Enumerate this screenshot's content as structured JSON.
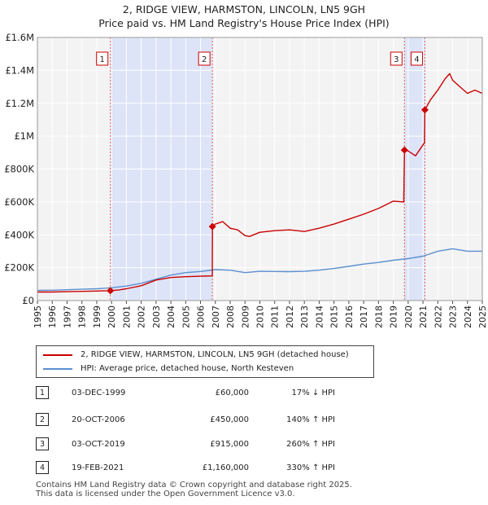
{
  "chart_data": {
    "type": "line",
    "title": "2, RIDGE VIEW, HARMSTON, LINCOLN, LN5 9GH",
    "subtitle": "Price paid vs. HM Land Registry's House Price Index (HPI)",
    "xlim": [
      1995,
      2025
    ],
    "ylim": [
      0,
      1600000
    ],
    "x_ticks": [
      1995,
      1996,
      1997,
      1998,
      1999,
      2000,
      2001,
      2002,
      2003,
      2004,
      2005,
      2006,
      2007,
      2008,
      2009,
      2010,
      2011,
      2012,
      2013,
      2014,
      2015,
      2016,
      2017,
      2018,
      2019,
      2020,
      2021,
      2022,
      2023,
      2024,
      2025
    ],
    "y_ticks": [
      {
        "value": 0,
        "label": "£0"
      },
      {
        "value": 200000,
        "label": "£200K"
      },
      {
        "value": 400000,
        "label": "£400K"
      },
      {
        "value": 600000,
        "label": "£600K"
      },
      {
        "value": 800000,
        "label": "£800K"
      },
      {
        "value": 1000000,
        "label": "£1M"
      },
      {
        "value": 1200000,
        "label": "£1.2M"
      },
      {
        "value": 1400000,
        "label": "£1.4M"
      },
      {
        "value": 1600000,
        "label": "£1.6M"
      }
    ],
    "grid": true,
    "shaded_spans": [
      [
        1999.92,
        2006.8
      ],
      [
        2019.75,
        2021.13
      ]
    ],
    "series": [
      {
        "name": "2, RIDGE VIEW, HARMSTON, LINCOLN, LN5 9GH (detached house)",
        "color": "#cc0000",
        "x": [
          1995,
          1996,
          1997,
          1998,
          1999,
          1999.92,
          2000.5,
          2001,
          2002,
          2003,
          2004,
          2005,
          2006,
          2006.79,
          2006.8,
          2007,
          2007.5,
          2008,
          2008.5,
          2009,
          2009.3,
          2010,
          2011,
          2012,
          2013,
          2014,
          2015,
          2016,
          2017,
          2018,
          2019,
          2019.7,
          2019.75,
          2020,
          2020.5,
          2021.1,
          2021.13,
          2021.5,
          2022,
          2022.5,
          2022.8,
          2023,
          2023.5,
          2024,
          2024.5,
          2025
        ],
        "values": [
          52000,
          52000,
          54000,
          56000,
          58000,
          60000,
          65000,
          72000,
          90000,
          125000,
          140000,
          145000,
          148000,
          150000,
          450000,
          465000,
          480000,
          440000,
          430000,
          395000,
          390000,
          415000,
          425000,
          430000,
          420000,
          440000,
          465000,
          495000,
          525000,
          560000,
          605000,
          600000,
          915000,
          910000,
          880000,
          960000,
          1160000,
          1220000,
          1280000,
          1350000,
          1380000,
          1340000,
          1300000,
          1260000,
          1280000,
          1260000
        ]
      },
      {
        "name": "HPI: Average price, detached house, North Kesteven",
        "color": "#5b8fd0",
        "x": [
          1995,
          1996,
          1997,
          1998,
          1999,
          2000,
          2001,
          2002,
          2003,
          2004,
          2005,
          2006,
          2007,
          2008,
          2009,
          2010,
          2011,
          2012,
          2013,
          2014,
          2015,
          2016,
          2017,
          2018,
          2019,
          2020,
          2021,
          2022,
          2023,
          2024,
          2025
        ],
        "values": [
          62000,
          63000,
          66000,
          69000,
          72000,
          78000,
          88000,
          105000,
          130000,
          155000,
          170000,
          177000,
          188000,
          185000,
          170000,
          178000,
          177000,
          176000,
          178000,
          185000,
          195000,
          208000,
          222000,
          232000,
          245000,
          255000,
          270000,
          300000,
          315000,
          300000,
          300000
        ]
      }
    ],
    "sales": [
      {
        "label": "1",
        "x": 1999.92,
        "value": 60000
      },
      {
        "label": "2",
        "x": 2006.8,
        "value": 450000
      },
      {
        "label": "3",
        "x": 2019.75,
        "value": 915000
      },
      {
        "label": "4",
        "x": 2021.13,
        "value": 1160000
      }
    ]
  },
  "legend": {
    "property_label": "2, RIDGE VIEW, HARMSTON, LINCOLN, LN5 9GH (detached house)",
    "hpi_label": "HPI: Average price, detached house, North Kesteven",
    "property_color": "#cc0000",
    "hpi_color": "#5b8fd0"
  },
  "transactions": [
    {
      "num": "1",
      "date": "03-DEC-1999",
      "price": "£60,000",
      "hpi": "17% ↓ HPI"
    },
    {
      "num": "2",
      "date": "20-OCT-2006",
      "price": "£450,000",
      "hpi": "140% ↑ HPI"
    },
    {
      "num": "3",
      "date": "03-OCT-2019",
      "price": "£915,000",
      "hpi": "260% ↑ HPI"
    },
    {
      "num": "4",
      "date": "19-FEB-2021",
      "price": "£1,160,000",
      "hpi": "330% ↑ HPI"
    }
  ],
  "footer": {
    "line1": "Contains HM Land Registry data © Crown copyright and database right 2025.",
    "line2": "This data is licensed under the Open Government Licence v3.0."
  }
}
